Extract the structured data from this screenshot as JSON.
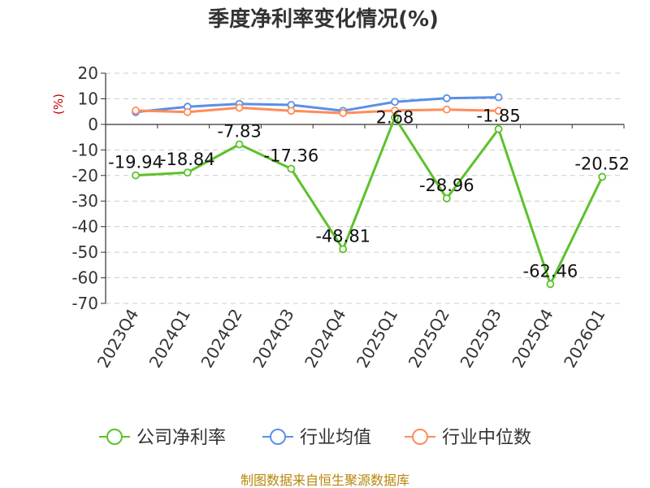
{
  "chart_data": {
    "type": "line",
    "title": "季度净利率变化情况(%)",
    "ylabel": "(%)",
    "xlabel": "",
    "ylim": [
      -70,
      20
    ],
    "yticks": [
      20,
      10,
      0,
      -10,
      -20,
      -30,
      -40,
      -50,
      -60,
      -70
    ],
    "categories": [
      "2023Q4",
      "2024Q1",
      "2024Q2",
      "2024Q3",
      "2024Q4",
      "2025Q1",
      "2025Q2",
      "2025Q3",
      "2025Q4",
      "2026Q1"
    ],
    "grid": true,
    "legend_position": "bottom",
    "series": [
      {
        "name": "公司净利率",
        "color": "#5cc22b",
        "values": [
          -19.94,
          -18.84,
          -7.83,
          -17.36,
          -48.81,
          2.68,
          -28.96,
          -1.85,
          -62.46,
          -20.52
        ],
        "labels": [
          "-19.94",
          "-18.84",
          "-7.83",
          "-17.36",
          "-48.81",
          "2.68",
          "-28.96",
          "-1.85",
          "-62.46",
          "-20.52"
        ]
      },
      {
        "name": "行业均值",
        "color": "#5b8fe6",
        "values": [
          4.8,
          6.9,
          8.0,
          7.6,
          5.3,
          8.8,
          10.2,
          10.6,
          null,
          null
        ]
      },
      {
        "name": "行业中位数",
        "color": "#ff8c5a",
        "values": [
          5.4,
          4.8,
          6.5,
          5.3,
          4.4,
          5.4,
          5.8,
          5.3,
          null,
          null
        ]
      }
    ]
  },
  "source_note": "制图数据来自恒生聚源数据库"
}
